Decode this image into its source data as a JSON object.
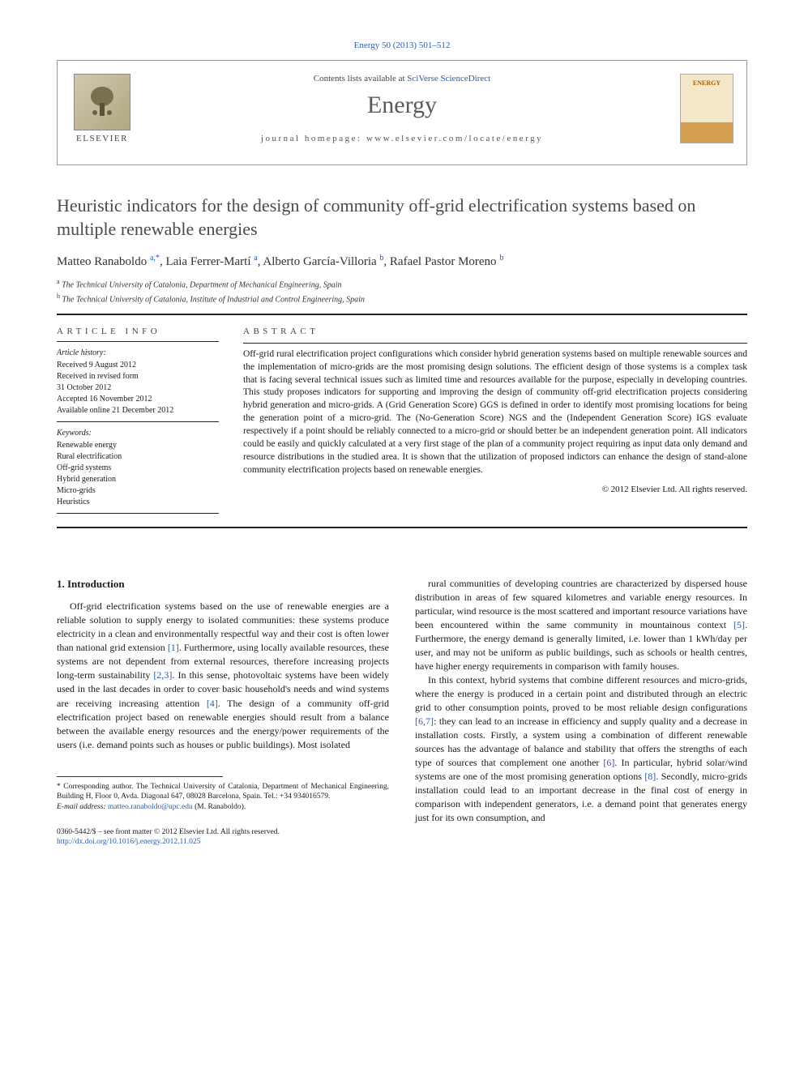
{
  "journal_ref": "Energy 50 (2013) 501–512",
  "header": {
    "contents_prefix": "Contents lists available at ",
    "contents_link": "SciVerse ScienceDirect",
    "journal_name": "Energy",
    "homepage_prefix": "journal homepage: ",
    "homepage_url": "www.elsevier.com/locate/energy",
    "elsevier_label": "ELSEVIER",
    "thumb_label": "ENERGY"
  },
  "title": "Heuristic indicators for the design of community off-grid electrification systems based on multiple renewable energies",
  "authors_html": "Matteo Ranaboldo <sup>a,*</sup>, Laia Ferrer-Martí <sup>a</sup>, Alberto García-Villoria <sup>b</sup>, Rafael Pastor Moreno <sup>b</sup>",
  "affiliations": {
    "a": "The Technical University of Catalonia, Department of Mechanical Engineering, Spain",
    "b": "The Technical University of Catalonia, Institute of Industrial and Control Engineering, Spain"
  },
  "article_info": {
    "heading": "ARTICLE INFO",
    "history_label": "Article history:",
    "history": "Received 9 August 2012\nReceived in revised form\n31 October 2012\nAccepted 16 November 2012\nAvailable online 21 December 2012",
    "keywords_label": "Keywords:",
    "keywords": "Renewable energy\nRural electrification\nOff-grid systems\nHybrid generation\nMicro-grids\nHeuristics"
  },
  "abstract": {
    "heading": "ABSTRACT",
    "text": "Off-grid rural electrification project configurations which consider hybrid generation systems based on multiple renewable sources and the implementation of micro-grids are the most promising design solutions. The efficient design of those systems is a complex task that is facing several technical issues such as limited time and resources available for the purpose, especially in developing countries. This study proposes indicators for supporting and improving the design of community off-grid electrification projects considering hybrid generation and micro-grids. A (Grid Generation Score) GGS is defined in order to identify most promising locations for being the generation point of a micro-grid. The (No-Generation Score) NGS and the (Independent Generation Score) IGS evaluate respectively if a point should be reliably connected to a micro-grid or should better be an independent generation point. All indicators could be easily and quickly calculated at a very first stage of the plan of a community project requiring as input data only demand and resource distributions in the studied area. It is shown that the utilization of proposed indictors can enhance the design of stand-alone community electrification projects based on renewable energies.",
    "copyright": "© 2012 Elsevier Ltd. All rights reserved."
  },
  "section1": {
    "heading": "1. Introduction",
    "col1_p1": "Off-grid electrification systems based on the use of renewable energies are a reliable solution to supply energy to isolated communities: these systems produce electricity in a clean and environmentally respectful way and their cost is often lower than national grid extension [1]. Furthermore, using locally available resources, these systems are not dependent from external resources, therefore increasing projects long-term sustainability [2,3]. In this sense, photovoltaic systems have been widely used in the last decades in order to cover basic household's needs and wind systems are receiving increasing attention [4]. The design of a community off-grid electrification project based on renewable energies should result from a balance between the available energy resources and the energy/power requirements of the users (i.e. demand points such as houses or public buildings). Most isolated",
    "col2_p1": "rural communities of developing countries are characterized by dispersed house distribution in areas of few squared kilometres and variable energy resources. In particular, wind resource is the most scattered and important resource variations have been encountered within the same community in mountainous context [5]. Furthermore, the energy demand is generally limited, i.e. lower than 1 kWh/day per user, and may not be uniform as public buildings, such as schools or health centres, have higher energy requirements in comparison with family houses.",
    "col2_p2": "In this context, hybrid systems that combine different resources and micro-grids, where the energy is produced in a certain point and distributed through an electric grid to other consumption points, proved to be most reliable design configurations [6,7]: they can lead to an increase in efficiency and supply quality and a decrease in installation costs. Firstly, a system using a combination of different renewable sources has the advantage of balance and stability that offers the strengths of each type of sources that complement one another [6]. In particular, hybrid solar/wind systems are one of the most promising generation options [8]. Secondly, micro-grids installation could lead to an important decrease in the final cost of energy in comparison with independent generators, i.e. a demand point that generates energy just for its own consumption, and"
  },
  "footnote": {
    "corresponding": "* Corresponding author. The Technical University of Catalonia, Department of Mechanical Engineering, Building H, Floor 0, Avda. Diagonal 647, 08028 Barcelona, Spain. Tel.: +34 934016579.",
    "email_label": "E-mail address: ",
    "email": "matteo.ranaboldo@upc.edu",
    "email_suffix": " (M. Ranaboldo)."
  },
  "bottom": {
    "line1": "0360-5442/$ – see front matter © 2012 Elsevier Ltd. All rights reserved.",
    "doi": "http://dx.doi.org/10.1016/j.energy.2012.11.025"
  }
}
